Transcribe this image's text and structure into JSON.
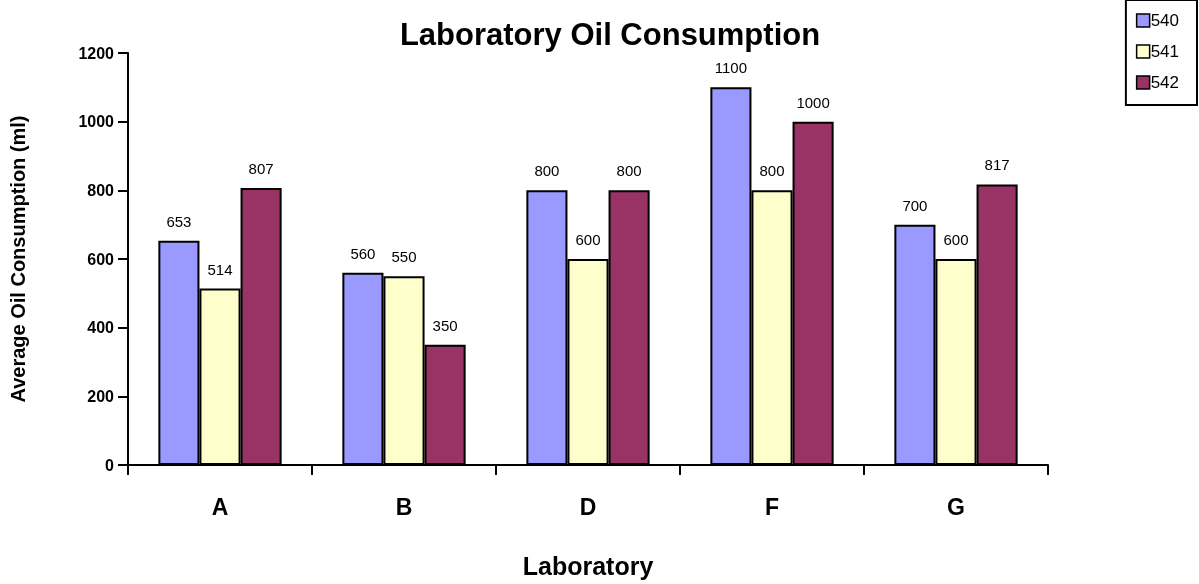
{
  "chart_data": {
    "type": "bar",
    "title": "Laboratory Oil Consumption",
    "xlabel": "Laboratory",
    "ylabel": "Average Oil Consumption (ml)",
    "categories": [
      "A",
      "B",
      "D",
      "F",
      "G"
    ],
    "series": [
      {
        "name": "540",
        "color": "#9999ff",
        "values": [
          653,
          560,
          800,
          1100,
          700
        ]
      },
      {
        "name": "541",
        "color": "#ffffcc",
        "values": [
          514,
          550,
          600,
          800,
          600
        ]
      },
      {
        "name": "542",
        "color": "#993366",
        "values": [
          807,
          350,
          800,
          1000,
          817
        ]
      }
    ],
    "ylim": [
      0,
      1200
    ],
    "yticks": [
      0,
      200,
      400,
      600,
      800,
      1000,
      1200
    ],
    "data_labels": true,
    "grid": false,
    "legend": "top right"
  }
}
